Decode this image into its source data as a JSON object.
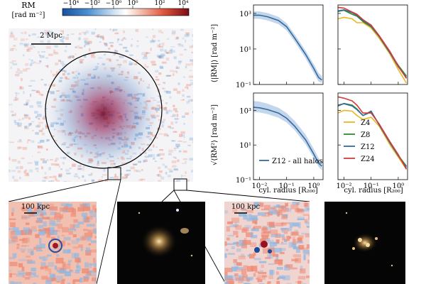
{
  "colorbar": {
    "label_line1": "RM",
    "label_line2": "[rad m⁻²]",
    "ticks": [
      "−10⁴",
      "−10²",
      "−10⁰",
      "10⁰",
      "10²",
      "10⁴"
    ]
  },
  "map": {
    "scalebar_main": "2 Mpc",
    "scalebar_zoom1": "100 kpc",
    "scalebar_zoom2": "100 kpc"
  },
  "panels": {
    "ylabel_top": "⟨|RM|⟩  [rad m⁻²]",
    "ylabel_bottom": "√⟨RM²⟩  [rad m⁻²]",
    "xlabel": "cyl. radius  [R₂₀₀]",
    "y_ticks": [
      "10³",
      "10¹",
      "10⁻¹"
    ],
    "x_ticks": [
      "10⁻²",
      "10⁻¹",
      "10⁰"
    ],
    "legend_left": "Z12 - all halos",
    "legend_right": [
      "Z4",
      "Z8",
      "Z12",
      "Z24"
    ]
  },
  "colors": {
    "Z4": "#e8b81e",
    "Z8": "#2e8b2e",
    "Z12": "#356a9e",
    "Z24": "#d63a3a",
    "band": "#a9c4e4"
  },
  "chart_data": [
    {
      "type": "line",
      "panel": "top-left",
      "x": [
        0.006,
        0.01,
        0.02,
        0.05,
        0.1,
        0.2,
        0.5,
        1,
        1.5,
        2
      ],
      "xscale": "log",
      "yscale": "log",
      "xlim": [
        0.006,
        2.2
      ],
      "ylim": [
        0.1,
        3000
      ],
      "series": [
        {
          "name": "Z12 - all halos",
          "values": [
            800,
            800,
            650,
            400,
            180,
            40,
            5,
            0.8,
            0.25,
            0.18
          ],
          "lower": [
            500,
            500,
            400,
            250,
            110,
            25,
            3,
            0.45,
            0.15,
            0.12
          ],
          "upper": [
            1300,
            1300,
            1050,
            650,
            280,
            65,
            8,
            1.4,
            0.45,
            0.3
          ]
        }
      ]
    },
    {
      "type": "line",
      "panel": "top-right",
      "x": [
        0.006,
        0.01,
        0.02,
        0.03,
        0.05,
        0.1,
        0.2,
        0.5,
        1,
        2
      ],
      "xscale": "log",
      "yscale": "log",
      "xlim": [
        0.006,
        2.2
      ],
      "ylim": [
        0.1,
        3000
      ],
      "series": [
        {
          "name": "Z4",
          "values": [
            500,
            600,
            500,
            300,
            300,
            150,
            40,
            5,
            0.7,
            0.12
          ]
        },
        {
          "name": "Z8",
          "values": [
            1300,
            1500,
            900,
            700,
            350,
            180,
            50,
            6,
            1.2,
            0.3
          ]
        },
        {
          "name": "Z12",
          "values": [
            1400,
            1600,
            1100,
            800,
            400,
            200,
            50,
            6,
            1.0,
            0.25
          ]
        },
        {
          "name": "Z24",
          "values": [
            2200,
            2000,
            1200,
            900,
            450,
            220,
            55,
            7,
            1.1,
            0.22
          ]
        }
      ]
    },
    {
      "type": "line",
      "panel": "bottom-left",
      "x": [
        0.006,
        0.01,
        0.02,
        0.05,
        0.1,
        0.2,
        0.5,
        1,
        1.5,
        2
      ],
      "xscale": "log",
      "yscale": "log",
      "xlim": [
        0.006,
        2.2
      ],
      "ylim": [
        0.1,
        10000
      ],
      "series": [
        {
          "name": "Z12 - all halos",
          "values": [
            1500,
            1400,
            1100,
            700,
            350,
            120,
            20,
            3,
            0.9,
            0.6
          ],
          "lower": [
            800,
            750,
            600,
            380,
            200,
            70,
            11,
            1.8,
            0.55,
            0.35
          ],
          "upper": [
            3500,
            3200,
            2400,
            1400,
            700,
            240,
            40,
            6,
            1.8,
            1.1
          ]
        }
      ]
    },
    {
      "type": "line",
      "panel": "bottom-right",
      "x": [
        0.006,
        0.01,
        0.02,
        0.03,
        0.05,
        0.1,
        0.2,
        0.5,
        1,
        2
      ],
      "xscale": "log",
      "yscale": "log",
      "xlim": [
        0.006,
        2.2
      ],
      "ylim": [
        0.1,
        10000
      ],
      "series": [
        {
          "name": "Z4",
          "values": [
            700,
            1000,
            900,
            500,
            300,
            400,
            120,
            10,
            2,
            0.4
          ]
        },
        {
          "name": "Z8",
          "values": [
            1800,
            2500,
            2000,
            1200,
            500,
            800,
            150,
            14,
            2.5,
            0.6
          ]
        },
        {
          "name": "Z12",
          "values": [
            2000,
            2400,
            1800,
            1100,
            500,
            900,
            140,
            13,
            2.4,
            0.5
          ]
        },
        {
          "name": "Z24",
          "values": [
            6000,
            5000,
            3500,
            2000,
            700,
            700,
            160,
            15,
            2.8,
            0.4
          ]
        }
      ]
    }
  ]
}
